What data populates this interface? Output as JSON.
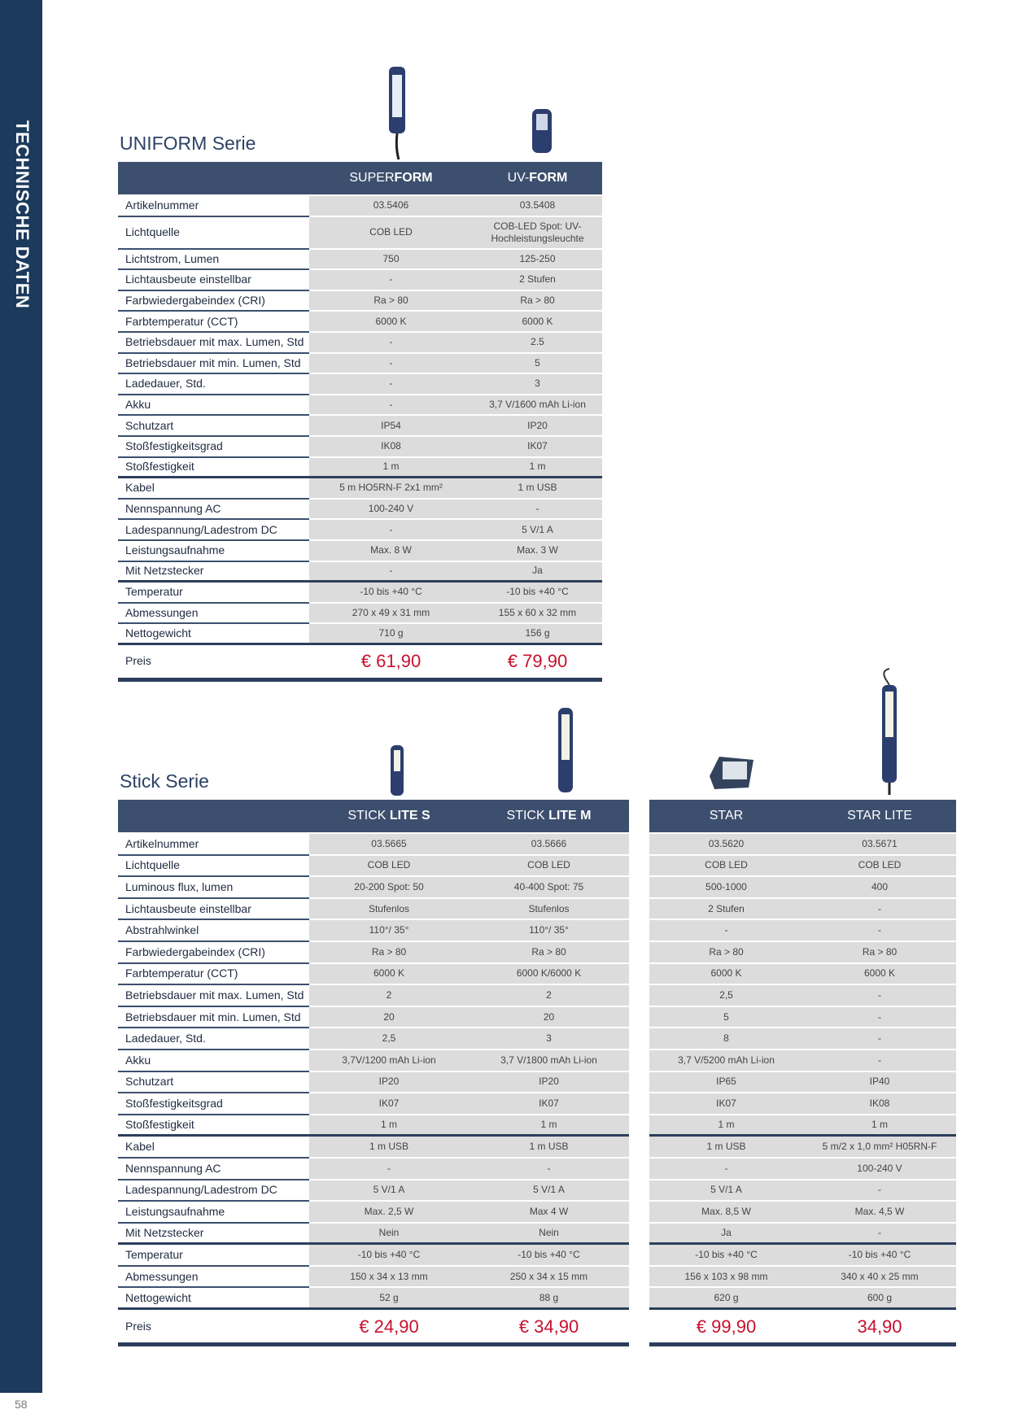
{
  "sidebar": "TECHNISCHE DATEN",
  "page_number": "58",
  "uniform_series": {
    "title": "UNIFORM Serie",
    "columns": [
      [
        "SUPER",
        "FORM"
      ],
      [
        "UV-",
        "FORM"
      ]
    ],
    "rows": [
      {
        "label": "Artikelnummer",
        "values": [
          "03.5406",
          "03.5408"
        ]
      },
      {
        "label": "Lichtquelle",
        "values": [
          "COB LED",
          "COB-LED Spot: UV-Hochleistungsleuchte"
        ]
      },
      {
        "label": "Lichtstrom, Lumen",
        "values": [
          "750",
          "125-250"
        ]
      },
      {
        "label": "Lichtausbeute einstellbar",
        "values": [
          "-",
          "2 Stufen"
        ]
      },
      {
        "label": "Farbwiedergabeindex (CRI)",
        "values": [
          "Ra > 80",
          "Ra > 80"
        ]
      },
      {
        "label": "Farbtemperatur (CCT)",
        "values": [
          "6000 K",
          "6000 K"
        ]
      },
      {
        "label": "Betriebsdauer mit max. Lumen, Std",
        "values": [
          "-",
          "2.5"
        ]
      },
      {
        "label": "Betriebsdauer mit min. Lumen, Std",
        "values": [
          "-",
          "5"
        ]
      },
      {
        "label": "Ladedauer, Std.",
        "values": [
          "-",
          "3"
        ]
      },
      {
        "label": "Akku",
        "values": [
          "-",
          "3,7 V/1600 mAh Li-ion"
        ]
      },
      {
        "label": "Schutzart",
        "values": [
          "IP54",
          "IP20"
        ]
      },
      {
        "label": "Stoßfestigkeitsgrad",
        "values": [
          "IK08",
          "IK07"
        ]
      },
      {
        "label": "Stoßfestigkeit",
        "values": [
          "1 m",
          "1 m"
        ]
      },
      {
        "label": "Kabel",
        "values": [
          "5 m HO5RN-F 2x1 mm²",
          "1 m USB"
        ]
      },
      {
        "label": "Nennspannung AC",
        "values": [
          "100-240 V",
          "-"
        ]
      },
      {
        "label": "Ladespannung/Ladestrom DC",
        "values": [
          "-",
          "5 V/1 A"
        ]
      },
      {
        "label": "Leistungsaufnahme",
        "values": [
          "Max. 8 W",
          "Max. 3 W"
        ]
      },
      {
        "label": "Mit Netzstecker",
        "values": [
          "-",
          "Ja"
        ]
      },
      {
        "label": "Temperatur",
        "values": [
          "-10 bis +40 °C",
          "-10 bis +40 °C"
        ]
      },
      {
        "label": "Abmessungen",
        "values": [
          "270 x 49 x 31 mm",
          "155 x 60 x 32 mm"
        ]
      },
      {
        "label": "Nettogewicht",
        "values": [
          "710 g",
          "156 g"
        ]
      }
    ],
    "price_label": "Preis",
    "prices": [
      "€ 61,90",
      "€ 79,90"
    ]
  },
  "stick_series": {
    "title": "Stick Serie",
    "columns": [
      [
        "STICK ",
        "LITE S"
      ],
      [
        "STICK ",
        "LITE M"
      ],
      [
        "STAR"
      ],
      [
        "STAR LITE"
      ]
    ],
    "rows": [
      {
        "label": "Artikelnummer",
        "values": [
          "03.5665",
          "03.5666",
          "03.5620",
          "03.5671"
        ]
      },
      {
        "label": "Lichtquelle",
        "values": [
          "COB LED",
          "COB LED",
          "COB LED",
          "COB LED"
        ]
      },
      {
        "label": "Luminous flux, lumen",
        "values": [
          "20-200 Spot: 50",
          "40-400 Spot: 75",
          "500-1000",
          "400"
        ]
      },
      {
        "label": "Lichtausbeute einstellbar",
        "values": [
          "Stufenlos",
          "Stufenlos",
          "2 Stufen",
          "-"
        ]
      },
      {
        "label": "Abstrahlwinkel",
        "values": [
          "110°/ 35°",
          "110°/ 35°",
          "-",
          "-"
        ]
      },
      {
        "label": "Farbwiedergabeindex (CRI)",
        "values": [
          "Ra > 80",
          "Ra > 80",
          "Ra > 80",
          "Ra > 80"
        ]
      },
      {
        "label": "Farbtemperatur (CCT)",
        "values": [
          "6000 K",
          "6000 K/6000 K",
          "6000 K",
          "6000 K"
        ]
      },
      {
        "label": "Betriebsdauer mit max. Lumen, Std",
        "values": [
          "2",
          "2",
          "2,5",
          "-"
        ]
      },
      {
        "label": "Betriebsdauer mit min. Lumen, Std",
        "values": [
          "20",
          "20",
          "5",
          "-"
        ]
      },
      {
        "label": "Ladedauer, Std.",
        "values": [
          "2,5",
          "3",
          "8",
          "-"
        ]
      },
      {
        "label": "Akku",
        "values": [
          "3,7V/1200 mAh Li-ion",
          "3,7 V/1800 mAh Li-ion",
          "3,7 V/5200 mAh Li-ion",
          "-"
        ]
      },
      {
        "label": "Schutzart",
        "values": [
          "IP20",
          "IP20",
          "IP65",
          "IP40"
        ]
      },
      {
        "label": "Stoßfestigkeitsgrad",
        "values": [
          "IK07",
          "IK07",
          "IK07",
          "IK08"
        ]
      },
      {
        "label": "Stoßfestigkeit",
        "values": [
          "1 m",
          "1 m",
          "1 m",
          "1 m"
        ]
      },
      {
        "label": "Kabel",
        "values": [
          "1 m USB",
          "1 m USB",
          "1 m USB",
          "5 m/2 x 1,0 mm² H05RN-F"
        ]
      },
      {
        "label": "Nennspannung AC",
        "values": [
          "-",
          "-",
          "-",
          "100-240 V"
        ]
      },
      {
        "label": "Ladespannung/Ladestrom DC",
        "values": [
          "5 V/1 A",
          "5 V/1 A",
          "5 V/1 A",
          "-"
        ]
      },
      {
        "label": "Leistungsaufnahme",
        "values": [
          "Max. 2,5 W",
          "Max 4 W",
          "Max. 8,5 W",
          "Max. 4,5 W"
        ]
      },
      {
        "label": "Mit Netzstecker",
        "values": [
          "Nein",
          "Nein",
          "Ja",
          "-"
        ]
      },
      {
        "label": "Temperatur",
        "values": [
          "-10 bis +40 °C",
          "-10 bis +40 °C",
          "-10 bis +40 °C",
          "-10 bis +40 °C"
        ]
      },
      {
        "label": "Abmessungen",
        "values": [
          "150 x 34 x 13 mm",
          "250 x 34 x 15 mm",
          "156 x 103 x 98 mm",
          "340 x 40 x 25 mm"
        ]
      },
      {
        "label": "Nettogewicht",
        "values": [
          "52 g",
          "88 g",
          "620 g",
          "600 g"
        ]
      }
    ],
    "price_label": "Preis",
    "prices": [
      "€ 24,90",
      "€ 34,90",
      "€ 99,90",
      "34,90"
    ]
  }
}
